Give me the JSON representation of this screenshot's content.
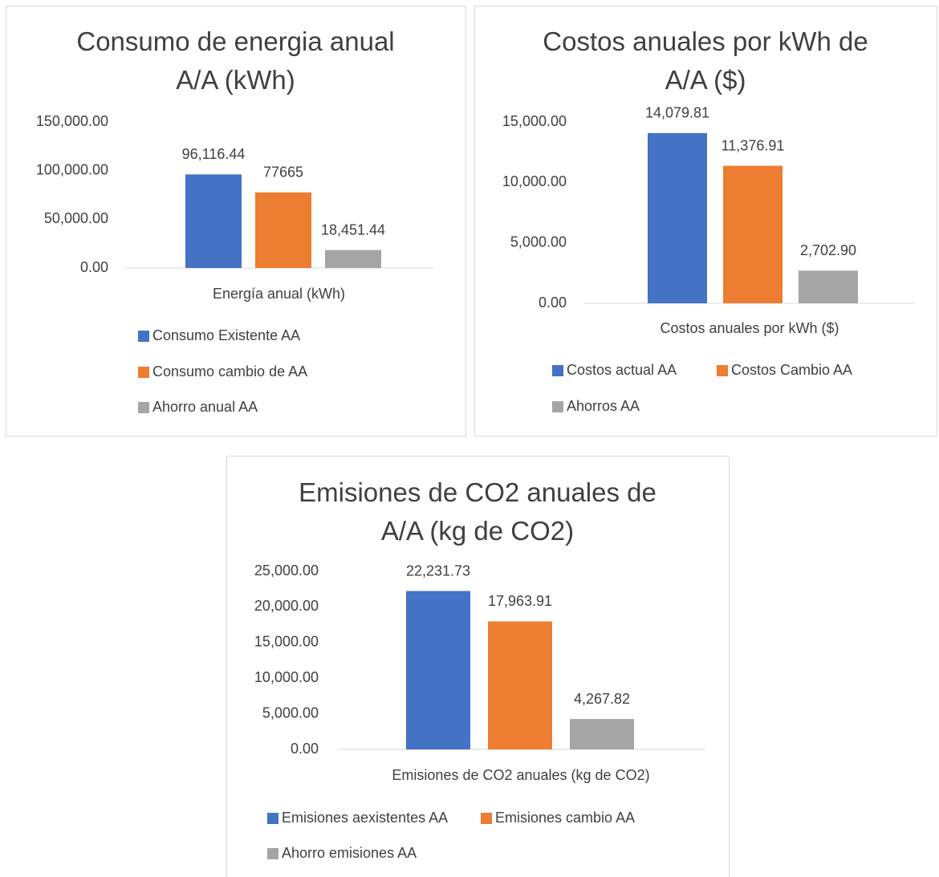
{
  "chart_data": [
    {
      "type": "bar",
      "title": "Consumo de energia anual A/A (kWh)",
      "categories": [
        "Energía anual (kWh)"
      ],
      "series": [
        {
          "name": "Consumo Existente AA",
          "color": "#4472c4",
          "values": [
            96116.44
          ],
          "value_labels": [
            "96,116.44"
          ]
        },
        {
          "name": "Consumo cambio de AA",
          "color": "#ed7d31",
          "values": [
            77665
          ]
        },
        {
          "name": "Ahorro anual AA",
          "color": "#a5a5a5",
          "values": [
            18451.44
          ],
          "value_labels": [
            "18,451.44"
          ]
        }
      ],
      "ylim": [
        0,
        150000
      ],
      "yticks": [
        {
          "value": 0,
          "label": "0.00"
        },
        {
          "value": 50000,
          "label": "50,000.00"
        },
        {
          "value": 100000,
          "label": "100,000.00"
        },
        {
          "value": 150000,
          "label": "150,000.00"
        }
      ],
      "grid": false,
      "legend": "bottom"
    },
    {
      "type": "bar",
      "title": "Costos anuales por kWh de A/A ($)",
      "categories": [
        "Costos anuales por kWh ($)"
      ],
      "series": [
        {
          "name": "Costos actual AA",
          "color": "#4472c4",
          "values": [
            14079.81
          ],
          "value_labels": [
            "14,079.81"
          ]
        },
        {
          "name": "Costos Cambio AA",
          "color": "#ed7d31",
          "values": [
            11376.91
          ],
          "value_labels": [
            "11,376.91"
          ]
        },
        {
          "name": "Ahorros AA",
          "color": "#a5a5a5",
          "values": [
            2702.9
          ],
          "value_labels": [
            "2,702.90"
          ]
        }
      ],
      "ylim": [
        0,
        15000
      ],
      "yticks": [
        {
          "value": 0,
          "label": "0.00"
        },
        {
          "value": 5000,
          "label": "5,000.00"
        },
        {
          "value": 10000,
          "label": "10,000.00"
        },
        {
          "value": 15000,
          "label": "15,000.00"
        }
      ],
      "grid": false,
      "legend": "bottom"
    },
    {
      "type": "bar",
      "title": "Emisiones de CO2 anuales de A/A (kg de CO2)",
      "categories": [
        "Emisiones de CO2 anuales (kg de CO2)"
      ],
      "series": [
        {
          "name": "Emisiones aexistentes AA",
          "color": "#4472c4",
          "values": [
            22231.73
          ],
          "value_labels": [
            "22,231.73"
          ]
        },
        {
          "name": "Emisiones cambio AA",
          "color": "#ed7d31",
          "values": [
            17963.91
          ],
          "value_labels": [
            "17,963.91"
          ]
        },
        {
          "name": "Ahorro emisiones AA",
          "color": "#a5a5a5",
          "values": [
            4267.82
          ],
          "value_labels": [
            "4,267.82"
          ]
        }
      ],
      "ylim": [
        0,
        25000
      ],
      "yticks": [
        {
          "value": 0,
          "label": "0.00"
        },
        {
          "value": 5000,
          "label": "5,000.00"
        },
        {
          "value": 10000,
          "label": "10,000.00"
        },
        {
          "value": 15000,
          "label": "15,000.00"
        },
        {
          "value": 20000,
          "label": "20,000.00"
        },
        {
          "value": 25000,
          "label": "25,000.00"
        }
      ],
      "grid": false,
      "legend": "bottom"
    }
  ]
}
